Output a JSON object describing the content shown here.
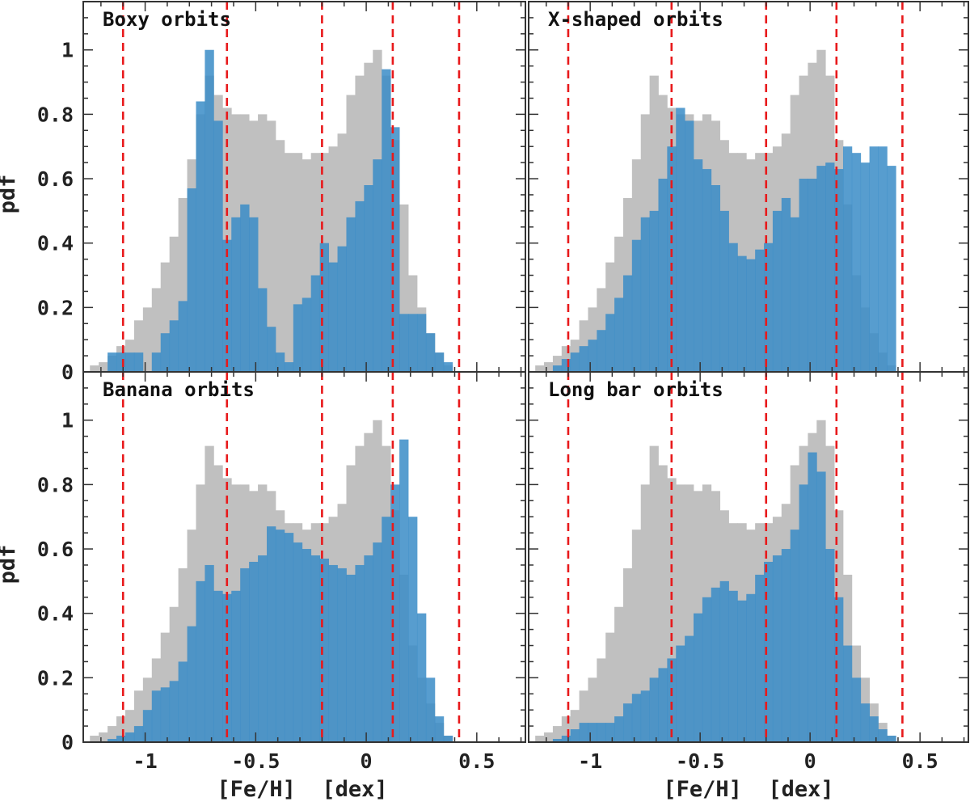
{
  "colors": {
    "all_stars": "#c0c0c0",
    "orbit_overlay": "#3a8cc7",
    "dark_overlap": "#4a8fc0",
    "vlines": "#e8191b",
    "frame": "#333333"
  },
  "chart_data": {
    "type": "histogram",
    "layout": "2x2 grid, shared axes",
    "xlabel": "[Fe/H]  [dex]",
    "ylabel": "pdf",
    "xlim": [
      -1.28,
      0.72
    ],
    "ylim": [
      0,
      1.15
    ],
    "x_ticks": [
      -1,
      -0.5,
      0,
      0.5
    ],
    "x_tick_labels": [
      "-1",
      "-0.5",
      "0",
      "0.5"
    ],
    "y_ticks": [
      0,
      0.2,
      0.4,
      0.6,
      0.8,
      1
    ],
    "y_tick_labels": [
      "0",
      "0.2",
      "0.4",
      "0.6",
      "0.8",
      "1"
    ],
    "bin_start": -1.25,
    "bin_width": 0.04,
    "vlines": [
      -1.1,
      -0.63,
      -0.2,
      0.12,
      0.42
    ],
    "panels": [
      {
        "title": "Boxy orbits",
        "all": [
          0.02,
          0.03,
          0.05,
          0.08,
          0.1,
          0.16,
          0.2,
          0.26,
          0.34,
          0.42,
          0.54,
          0.66,
          0.8,
          0.92,
          0.86,
          0.82,
          0.8,
          0.8,
          0.78,
          0.8,
          0.78,
          0.72,
          0.68,
          0.68,
          0.66,
          0.68,
          0.68,
          0.7,
          0.74,
          0.86,
          0.92,
          0.96,
          1.0,
          0.92,
          0.72,
          0.52,
          0.3,
          0.2,
          0.12,
          0.06,
          0.02
        ],
        "orbit": [
          0.0,
          0.0,
          0.06,
          0.06,
          0.06,
          0.06,
          0.0,
          0.06,
          0.12,
          0.16,
          0.22,
          0.57,
          0.84,
          1.0,
          0.78,
          0.41,
          0.48,
          0.52,
          0.48,
          0.26,
          0.14,
          0.06,
          0.03,
          0.21,
          0.23,
          0.3,
          0.4,
          0.34,
          0.39,
          0.48,
          0.53,
          0.58,
          0.66,
          0.94,
          0.76,
          0.18,
          0.18,
          0.18,
          0.12,
          0.06,
          0.03
        ]
      },
      {
        "title": "X-shaped orbits",
        "all": [
          0.02,
          0.03,
          0.05,
          0.08,
          0.1,
          0.16,
          0.2,
          0.26,
          0.34,
          0.42,
          0.54,
          0.66,
          0.8,
          0.92,
          0.86,
          0.82,
          0.8,
          0.8,
          0.78,
          0.8,
          0.78,
          0.72,
          0.68,
          0.68,
          0.66,
          0.68,
          0.68,
          0.7,
          0.74,
          0.86,
          0.92,
          0.96,
          1.0,
          0.92,
          0.72,
          0.52,
          0.3,
          0.2,
          0.12,
          0.06,
          0.02
        ],
        "orbit": [
          0.0,
          0.0,
          0.02,
          0.04,
          0.06,
          0.08,
          0.1,
          0.13,
          0.18,
          0.23,
          0.3,
          0.41,
          0.48,
          0.5,
          0.6,
          0.7,
          0.82,
          0.78,
          0.66,
          0.63,
          0.58,
          0.5,
          0.4,
          0.36,
          0.35,
          0.38,
          0.4,
          0.5,
          0.54,
          0.48,
          0.6,
          0.6,
          0.64,
          0.65,
          0.63,
          0.7,
          0.68,
          0.65,
          0.7,
          0.7,
          0.64
        ]
      },
      {
        "title": "Banana orbits",
        "all": [
          0.02,
          0.03,
          0.05,
          0.08,
          0.1,
          0.16,
          0.2,
          0.26,
          0.34,
          0.42,
          0.54,
          0.66,
          0.8,
          0.92,
          0.86,
          0.82,
          0.8,
          0.8,
          0.78,
          0.8,
          0.78,
          0.72,
          0.68,
          0.68,
          0.66,
          0.68,
          0.68,
          0.7,
          0.74,
          0.86,
          0.92,
          0.96,
          1.0,
          0.92,
          0.72,
          0.52,
          0.3,
          0.2,
          0.12,
          0.06,
          0.02
        ],
        "orbit": [
          0.0,
          0.0,
          0.01,
          0.02,
          0.03,
          0.05,
          0.1,
          0.16,
          0.17,
          0.19,
          0.25,
          0.36,
          0.5,
          0.55,
          0.47,
          0.46,
          0.47,
          0.54,
          0.56,
          0.58,
          0.67,
          0.66,
          0.65,
          0.62,
          0.6,
          0.58,
          0.57,
          0.55,
          0.54,
          0.52,
          0.55,
          0.58,
          0.62,
          0.7,
          0.8,
          0.94,
          0.7,
          0.4,
          0.2,
          0.08,
          0.02
        ]
      },
      {
        "title": "Long bar orbits",
        "all": [
          0.02,
          0.03,
          0.05,
          0.08,
          0.1,
          0.16,
          0.2,
          0.26,
          0.34,
          0.42,
          0.54,
          0.66,
          0.8,
          0.92,
          0.86,
          0.82,
          0.8,
          0.8,
          0.78,
          0.8,
          0.78,
          0.72,
          0.68,
          0.68,
          0.66,
          0.68,
          0.68,
          0.7,
          0.74,
          0.86,
          0.92,
          0.96,
          1.0,
          0.92,
          0.72,
          0.52,
          0.3,
          0.2,
          0.12,
          0.06,
          0.02
        ],
        "orbit": [
          0.0,
          0.0,
          0.01,
          0.02,
          0.04,
          0.06,
          0.06,
          0.06,
          0.06,
          0.08,
          0.12,
          0.15,
          0.16,
          0.2,
          0.23,
          0.26,
          0.3,
          0.33,
          0.4,
          0.45,
          0.48,
          0.5,
          0.47,
          0.44,
          0.46,
          0.52,
          0.56,
          0.58,
          0.6,
          0.66,
          0.8,
          0.9,
          0.84,
          0.6,
          0.45,
          0.3,
          0.2,
          0.12,
          0.08,
          0.04,
          0.02
        ]
      }
    ]
  }
}
